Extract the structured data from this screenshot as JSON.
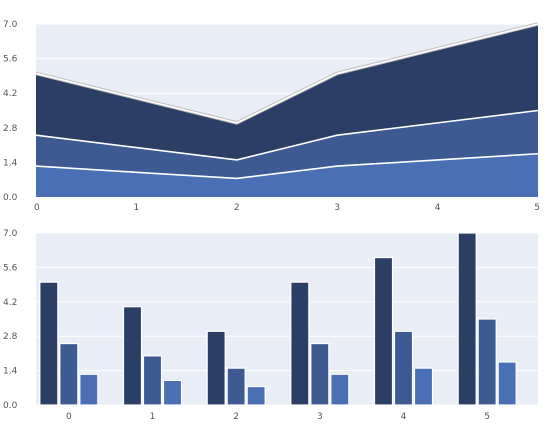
{
  "colors": {
    "background": "#ffffff",
    "plot_bg": "#e8edf6",
    "grid": "#ffffff",
    "series_dark": "#2b3f66",
    "series_mid": "#3d5a92",
    "series_light": "#4a6fb5",
    "tick_text": "#555555"
  },
  "chart_data": [
    {
      "type": "area",
      "stacked": true,
      "title": "",
      "xlabel": "",
      "ylabel": "",
      "x": [
        0,
        1,
        2,
        3,
        4,
        5
      ],
      "xticks": [
        "0",
        "1",
        "2",
        "3",
        "4",
        "5"
      ],
      "yticks": [
        "0.0",
        "1.4",
        "2.8",
        "4.2",
        "5.6",
        "7.0"
      ],
      "ylim": [
        0,
        7
      ],
      "grid": true,
      "legend": "none",
      "series": [
        {
          "values": [
            1.25,
            1.0,
            0.75,
            1.25,
            1.5,
            1.75
          ],
          "color": "#4a6fb5"
        },
        {
          "values": [
            1.25,
            1.0,
            0.75,
            1.25,
            1.5,
            1.75
          ],
          "color": "#3d5a92"
        },
        {
          "values": [
            2.5,
            2.0,
            1.5,
            2.5,
            3.0,
            3.5
          ],
          "color": "#2b3f66"
        }
      ]
    },
    {
      "type": "bar",
      "grouped": true,
      "title": "",
      "xlabel": "",
      "ylabel": "",
      "categories": [
        "0",
        "1",
        "2",
        "3",
        "4",
        "5"
      ],
      "yticks": [
        "0.0",
        "1.4",
        "2.8",
        "4.2",
        "5.6",
        "7.0"
      ],
      "ylim": [
        0,
        7
      ],
      "grid": true,
      "legend": "none",
      "series": [
        {
          "values": [
            5.0,
            4.0,
            3.0,
            5.0,
            6.0,
            7.0
          ],
          "color": "#2b3f66"
        },
        {
          "values": [
            2.5,
            2.0,
            1.5,
            2.5,
            3.0,
            3.5
          ],
          "color": "#3d5a92"
        },
        {
          "values": [
            1.25,
            1.0,
            0.75,
            1.25,
            1.5,
            1.75
          ],
          "color": "#4a6fb5"
        }
      ]
    }
  ]
}
